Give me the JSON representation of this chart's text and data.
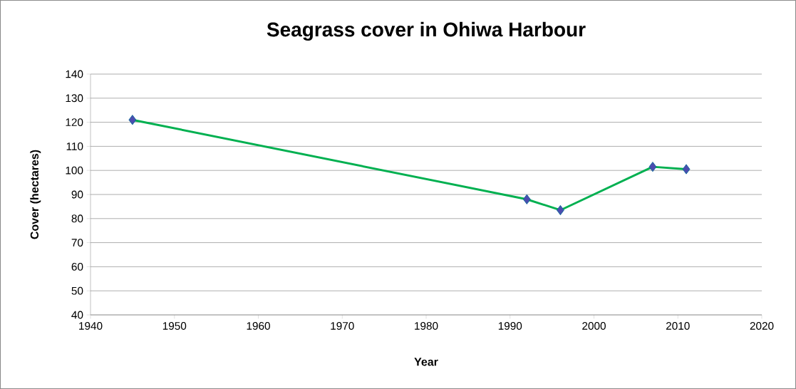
{
  "chart_data": {
    "type": "line",
    "title": "Seagrass cover in Ohiwa Harbour",
    "xlabel": "Year",
    "ylabel": "Cover (hectares)",
    "x": [
      1945,
      1992,
      1996,
      2007,
      2011
    ],
    "series": [
      {
        "color": "#00b050",
        "values": [
          121,
          88,
          83.5,
          101.5,
          100.5
        ]
      }
    ],
    "marker": "diamond",
    "line_style": "solid",
    "grid": "y",
    "xlim": [
      1940,
      2020
    ],
    "xticks": [
      1940,
      1950,
      1960,
      1970,
      1980,
      1990,
      2000,
      2010,
      2020
    ],
    "ylim": [
      40,
      140
    ],
    "yticks": [
      40,
      50,
      60,
      70,
      80,
      90,
      100,
      110,
      120,
      130,
      140
    ]
  }
}
